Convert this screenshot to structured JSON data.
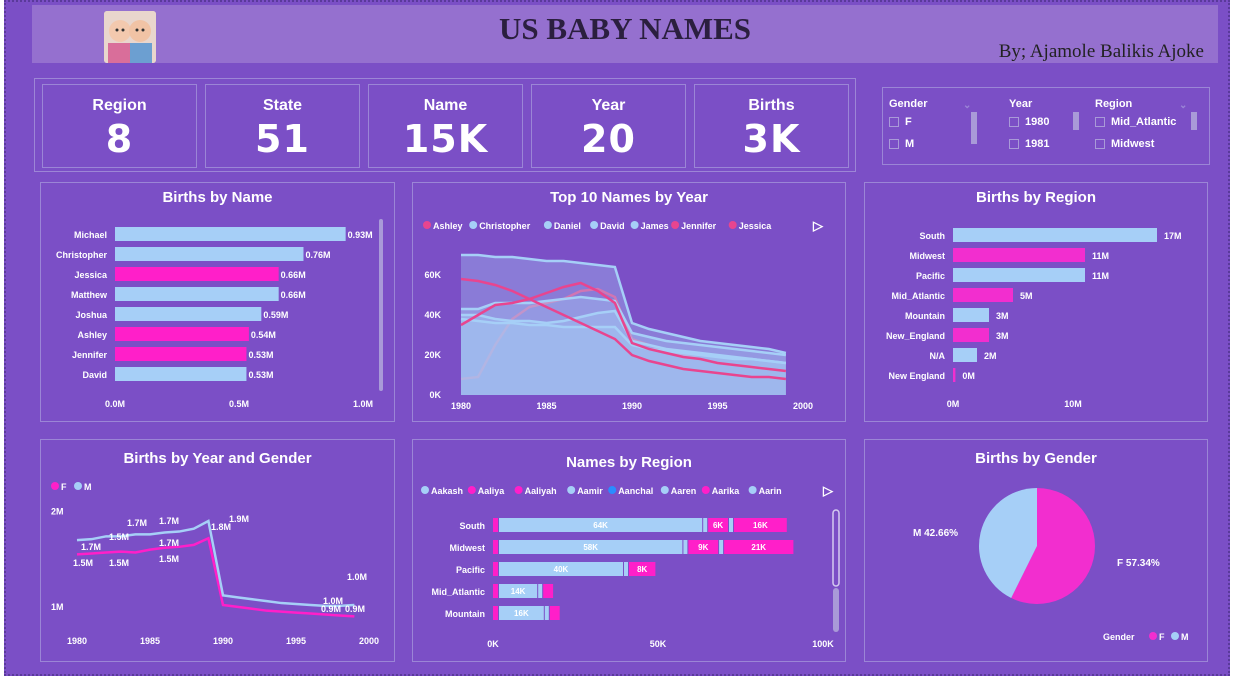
{
  "header": {
    "title": "US  BABY NAMES",
    "author": "By; Ajamole Balikis Ajoke"
  },
  "kpis": [
    {
      "label": "Region",
      "value": "8"
    },
    {
      "label": "State",
      "value": "51"
    },
    {
      "label": "Name",
      "value": "15K"
    },
    {
      "label": "Year",
      "value": "20"
    },
    {
      "label": "Births",
      "value": "3K"
    }
  ],
  "slicers": {
    "gender": {
      "title": "Gender",
      "options": [
        "F",
        "M"
      ]
    },
    "year": {
      "title": "Year",
      "options": [
        "1980",
        "1981"
      ]
    },
    "region": {
      "title": "Region",
      "options": [
        "Mid_Atlantic",
        "Midwest"
      ]
    }
  },
  "colors": {
    "pink": "#ff1fc9",
    "lightblue": "#a6cff7",
    "bg": "#7b4fc6"
  },
  "chart_data": [
    {
      "id": "births_by_name",
      "type": "bar",
      "title": "Births by Name",
      "categories": [
        "Michael",
        "Christopher",
        "Jessica",
        "Matthew",
        "Joshua",
        "Ashley",
        "Jennifer",
        "David"
      ],
      "values": [
        0.93,
        0.76,
        0.66,
        0.66,
        0.59,
        0.54,
        0.53,
        0.53
      ],
      "labels": [
        "0.93M",
        "0.76M",
        "0.66M",
        "0.66M",
        "0.59M",
        "0.54M",
        "0.53M",
        "0.53M"
      ],
      "gender": [
        "M",
        "M",
        "F",
        "M",
        "M",
        "F",
        "F",
        "M"
      ],
      "xticks": [
        "0.0M",
        "0.5M",
        "1.0M"
      ],
      "xlim": [
        0,
        1.0
      ]
    },
    {
      "id": "top10",
      "type": "area",
      "title": "Top 10 Names by Year",
      "legend": [
        "Ashley",
        "Christopher",
        "Daniel",
        "David",
        "James",
        "Jennifer",
        "Jessica"
      ],
      "legend_colors": [
        "#e8458f",
        "#a6cff7",
        "#a6cff7",
        "#a6cff7",
        "#a6cff7",
        "#e8458f",
        "#e8458f"
      ],
      "x": [
        1980,
        1981,
        1982,
        1983,
        1984,
        1985,
        1986,
        1987,
        1988,
        1989,
        1990,
        1991,
        1992,
        1993,
        1994,
        1995,
        1996,
        1997,
        1998,
        1999
      ],
      "xticks": [
        "1980",
        "1985",
        "1990",
        "1995",
        "2000"
      ],
      "yticks": [
        "0K",
        "20K",
        "40K",
        "60K"
      ],
      "ylim": [
        0,
        70
      ],
      "series": [
        {
          "name": "Ashley",
          "color": "#e8458f",
          "values": [
            8,
            9,
            25,
            38,
            44,
            46,
            48,
            52,
            53,
            49,
            28,
            25,
            22,
            20,
            18,
            16,
            15,
            14,
            13,
            12
          ]
        },
        {
          "name": "Christopher",
          "color": "#a6cff7",
          "values": [
            70,
            70,
            69,
            69,
            68,
            67,
            67,
            66,
            65,
            64,
            36,
            33,
            31,
            29,
            27,
            26,
            25,
            24,
            23,
            21
          ]
        },
        {
          "name": "Daniel",
          "color": "#a6cff7",
          "values": [
            43,
            43,
            46,
            46,
            46,
            47,
            48,
            49,
            48,
            47,
            31,
            29,
            27,
            26,
            25,
            24,
            23,
            22,
            21,
            20
          ]
        },
        {
          "name": "David",
          "color": "#a6cff7",
          "values": [
            40,
            40,
            38,
            37,
            37,
            36,
            37,
            39,
            41,
            42,
            27,
            25,
            23,
            22,
            21,
            20,
            19,
            18,
            17,
            16
          ]
        },
        {
          "name": "James",
          "color": "#a6cff7",
          "values": [
            38,
            37,
            36,
            36,
            35,
            35,
            34,
            34,
            34,
            34,
            25,
            23,
            22,
            21,
            20,
            19,
            18,
            18,
            17,
            16
          ]
        },
        {
          "name": "Jennifer",
          "color": "#e8458f",
          "values": [
            58,
            57,
            55,
            52,
            48,
            44,
            40,
            36,
            32,
            28,
            20,
            17,
            15,
            13,
            12,
            11,
            10,
            9,
            9,
            8
          ]
        },
        {
          "name": "Jessica",
          "color": "#e8458f",
          "values": [
            35,
            40,
            45,
            46,
            48,
            51,
            54,
            56,
            52,
            46,
            26,
            23,
            21,
            19,
            18,
            16,
            15,
            14,
            13,
            12
          ]
        }
      ]
    },
    {
      "id": "births_by_region",
      "type": "bar",
      "title": "Births by Region",
      "categories": [
        "South",
        "Midwest",
        "Pacific",
        "Mid_Atlantic",
        "Mountain",
        "New_England",
        "N/A",
        "New England"
      ],
      "values": [
        17,
        11,
        11,
        5,
        3,
        3,
        2,
        0.2
      ],
      "labels": [
        "17M",
        "11M",
        "11M",
        "5M",
        "3M",
        "3M",
        "2M",
        "0M"
      ],
      "colors": [
        "#a6cff7",
        "#f22ecf",
        "#a6cff7",
        "#f22ecf",
        "#a6cff7",
        "#f22ecf",
        "#a6cff7",
        "#f22ecf"
      ],
      "xticks": [
        "0M",
        "10M"
      ],
      "xlim": [
        0,
        20
      ]
    },
    {
      "id": "births_by_year_gender",
      "type": "line",
      "title": "Births by Year and Gender",
      "legend": [
        "F",
        "M"
      ],
      "legend_colors": [
        "#ff1fc9",
        "#a6cff7"
      ],
      "x": [
        1980,
        1981,
        1982,
        1983,
        1984,
        1985,
        1986,
        1987,
        1988,
        1989,
        1990,
        1991,
        1992,
        1993,
        1994,
        1995,
        1996,
        1997,
        1998,
        1999
      ],
      "xticks": [
        "1980",
        "1985",
        "1990",
        "1995",
        "2000"
      ],
      "yticks": [
        "2M",
        "1M"
      ],
      "ylim": [
        0.6,
        2.1
      ],
      "series": [
        {
          "name": "F",
          "color": "#ff1fc9",
          "values": [
            1.55,
            1.56,
            1.57,
            1.58,
            1.57,
            1.6,
            1.62,
            1.63,
            1.65,
            1.72,
            1.02,
            1.0,
            0.98,
            0.96,
            0.95,
            0.94,
            0.93,
            0.92,
            0.91,
            0.9
          ]
        },
        {
          "name": "M",
          "color": "#a6cff7",
          "values": [
            1.7,
            1.71,
            1.74,
            1.74,
            1.76,
            1.76,
            1.78,
            1.79,
            1.82,
            1.9,
            1.12,
            1.1,
            1.08,
            1.06,
            1.04,
            1.03,
            1.02,
            1.01,
            1.01,
            1.02
          ]
        }
      ],
      "annotations": [
        "1.7M",
        "1.5M",
        "1.7M",
        "1.7M",
        "1.5M",
        "1.5M",
        "1.7M",
        "1.5M",
        "1.9M",
        "1.8M",
        "1.0M",
        "1.0M",
        "0.9M",
        "0.9M"
      ]
    },
    {
      "id": "names_by_region",
      "type": "bar",
      "title": "Names by Region",
      "legend": [
        "Aakash",
        "Aaliya",
        "Aaliyah",
        "Aamir",
        "Aanchal",
        "Aaren",
        "Aarika",
        "Aarin"
      ],
      "legend_colors": [
        "#a6cff7",
        "#ff1fc9",
        "#ff1fc9",
        "#a6cff7",
        "#2a8cff",
        "#a6cff7",
        "#ff1fc9",
        "#a6cff7"
      ],
      "categories": [
        "South",
        "Midwest",
        "Pacific",
        "Mid_Atlantic",
        "Mountain"
      ],
      "values": [
        {
          "blue": 64,
          "mid": 6,
          "pink": 16
        },
        {
          "blue": 58,
          "mid": 9,
          "pink": 21
        },
        {
          "blue": 40,
          "pink": 8
        },
        {
          "blue": 14
        },
        {
          "blue": 16
        }
      ],
      "labels": [
        [
          "64K",
          "6K",
          "16K"
        ],
        [
          "58K",
          "9K",
          "21K"
        ],
        [
          "40K",
          "8K"
        ],
        [
          "14K"
        ],
        [
          "16K"
        ]
      ],
      "xticks": [
        "0K",
        "50K",
        "100K"
      ],
      "xlim": [
        0,
        100
      ]
    },
    {
      "id": "births_by_gender",
      "type": "pie",
      "title": "Births by Gender",
      "slices": [
        {
          "name": "F",
          "value": 57.34,
          "color": "#f22ecf"
        },
        {
          "name": "M",
          "value": 42.66,
          "color": "#a6cff7"
        }
      ],
      "labels": [
        "F 57.34%",
        "M 42.66%"
      ],
      "legend_title": "Gender"
    }
  ]
}
